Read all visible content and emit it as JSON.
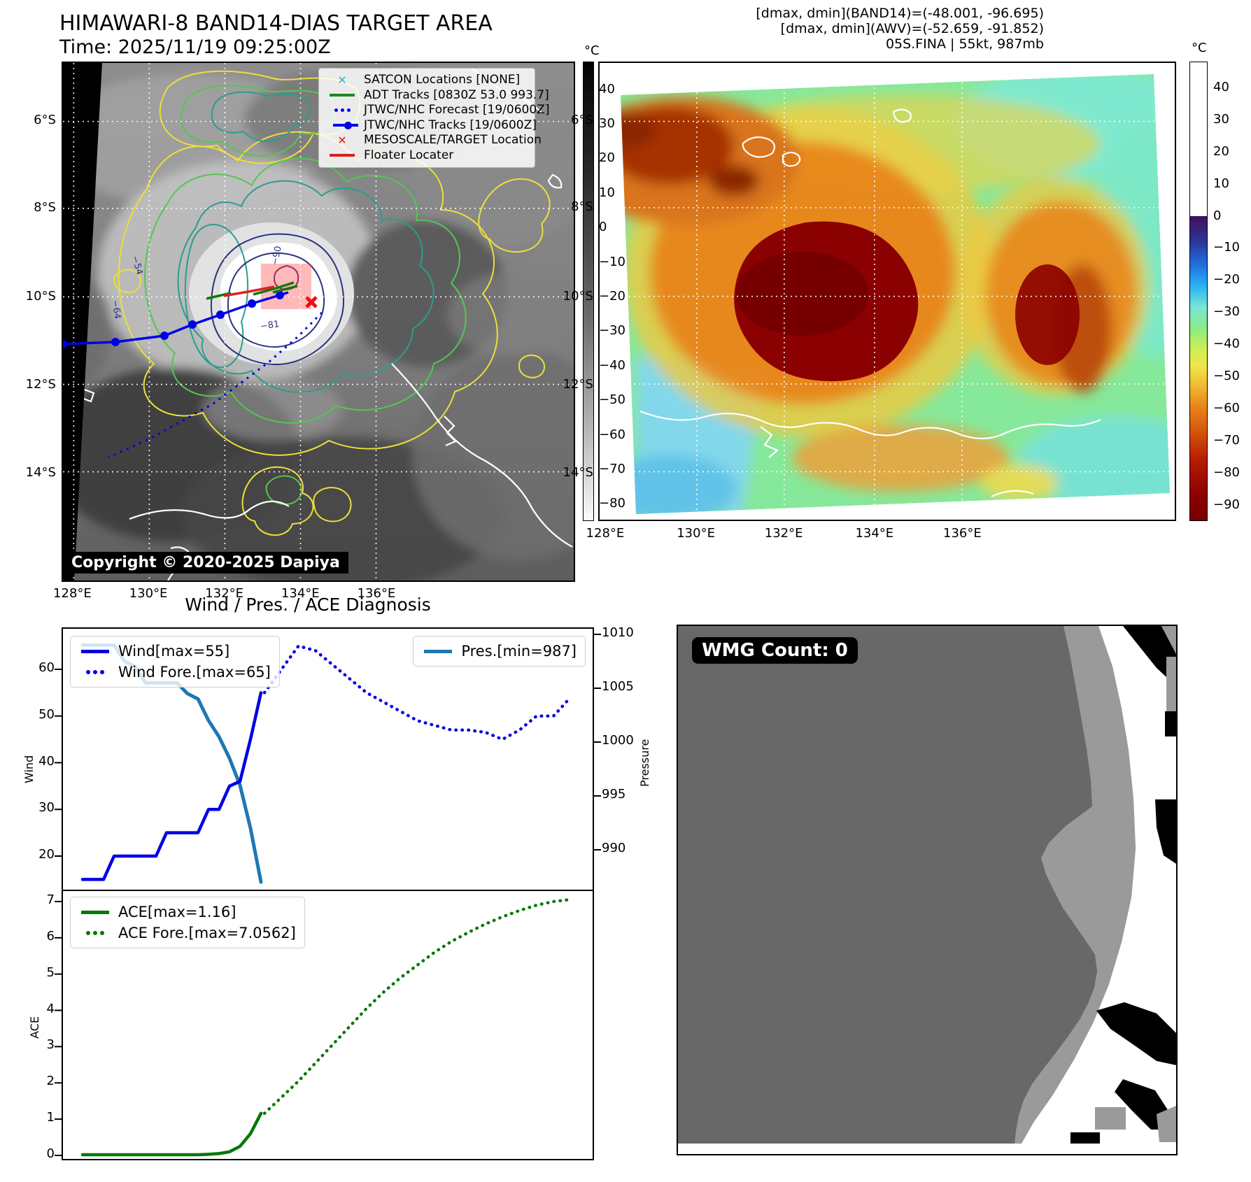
{
  "header": {
    "title": "HIMAWARI-8 BAND14-DIAS TARGET AREA",
    "time": "Time: 2025/11/19 09:25:00Z",
    "info_lines": [
      "[dmax, dmin](BAND14)=(-48.001, -96.695)",
      "[dmax, dmin](AWV)=(-52.659, -91.852)",
      "05S.FINA | 55kt, 987mb"
    ]
  },
  "left_map": {
    "x_tick_labels": [
      "128°E",
      "130°E",
      "132°E",
      "134°E",
      "136°E"
    ],
    "y_tick_labels": [
      "6°S",
      "8°S",
      "10°S",
      "12°S",
      "14°S"
    ],
    "legend": [
      {
        "label": "SATCON Locations [NONE]",
        "marker": "x",
        "color": "#1fb8c9"
      },
      {
        "label": "ADT Tracks [0830Z 53.0 993.7]",
        "marker": "line",
        "color": "#1e8a1e"
      },
      {
        "label": "JTWC/NHC Forecast [19/0600Z]",
        "marker": "dots",
        "color": "#0000e6"
      },
      {
        "label": "JTWC/NHC Tracks [19/0600Z]",
        "marker": "line-dot",
        "color": "#0000e6"
      },
      {
        "label": "MESOSCALE/TARGET Location",
        "marker": "x",
        "color": "#e81818"
      },
      {
        "label": "Floater Locater",
        "marker": "line",
        "color": "#d62020"
      }
    ],
    "contour_labels": [
      "−54",
      "−64",
      "−81",
      "−90"
    ],
    "copyright": "Copyright © 2020-2025 Dapiya",
    "colorbar": {
      "unit": "°C",
      "ticks": [
        "40",
        "30",
        "20",
        "10",
        "0",
        "−10",
        "−20",
        "−30",
        "−40",
        "−50",
        "−60",
        "−70",
        "−80"
      ]
    }
  },
  "right_map": {
    "x_tick_labels": [
      "128°E",
      "130°E",
      "132°E",
      "134°E",
      "136°E"
    ],
    "y_tick_labels": [
      "6°S",
      "8°S",
      "10°S",
      "12°S",
      "14°S"
    ],
    "colorbar": {
      "unit": "°C",
      "ticks": [
        "40",
        "30",
        "20",
        "10",
        "0",
        "−10",
        "−20",
        "−30",
        "−40",
        "−50",
        "−60",
        "−70",
        "−80",
        "−90"
      ]
    }
  },
  "diagnosis": {
    "title": "Wind / Pres. / ACE Diagnosis",
    "wind_axis_label": "Wind",
    "pressure_axis_label": "Pressure",
    "ace_axis_label": "ACE",
    "legend": {
      "wind": "Wind[max=55]",
      "wind_fore": "Wind Fore.[max=65]",
      "pres": "Pres.[min=987]",
      "ace": "ACE[max=1.16]",
      "ace_fore": "ACE Fore.[max=7.0562]"
    },
    "wind_ticks": [
      60,
      50,
      40,
      30,
      20
    ],
    "pres_ticks": [
      1010,
      1005,
      1000,
      995,
      990
    ],
    "ace_ticks": [
      7,
      6,
      5,
      4,
      3,
      2,
      1,
      0
    ]
  },
  "wmg": {
    "count_text": "WMG Count: 0"
  },
  "chart_data": [
    {
      "type": "line",
      "title": "Wind / Pres. / ACE Diagnosis (upper panel)",
      "ylabel": "Wind",
      "y2label": "Pressure",
      "ylim": [
        14,
        66
      ],
      "y2lim": [
        986.5,
        1010.5
      ],
      "grid": false,
      "legend_position": "upper-left and upper-right",
      "series": [
        {
          "name": "Wind[max=55]",
          "axis": "left",
          "style": "solid",
          "color": "#0000e6",
          "values": [
            15,
            15,
            15,
            20,
            20,
            20,
            20,
            20,
            25,
            25,
            25,
            25,
            30,
            30,
            35,
            36,
            45,
            55
          ]
        },
        {
          "name": "Wind Fore.[max=65]",
          "axis": "left",
          "style": "dotted",
          "color": "#0000e6",
          "values": [
            55,
            60,
            65,
            64,
            61,
            58,
            55,
            53,
            51,
            49,
            48,
            47,
            47,
            46.5,
            45,
            47,
            50,
            50,
            54
          ]
        },
        {
          "name": "Pres.[min=987]",
          "axis": "right",
          "style": "solid",
          "color": "#1f77b4",
          "values": [
            1009,
            1009,
            1009,
            1009,
            1007.5,
            1007,
            1005.5,
            1005.5,
            1005.5,
            1005.5,
            1004.5,
            1004,
            1002,
            1000.5,
            998.5,
            996,
            992,
            987
          ]
        }
      ]
    },
    {
      "type": "line",
      "title": "ACE (lower panel)",
      "ylabel": "ACE",
      "ylim": [
        0,
        7.3
      ],
      "grid": false,
      "legend_position": "upper-left",
      "series": [
        {
          "name": "ACE[max=1.16]",
          "style": "solid",
          "color": "#067806",
          "values": [
            0.02,
            0.02,
            0.02,
            0.02,
            0.02,
            0.02,
            0.02,
            0.02,
            0.02,
            0.02,
            0.02,
            0.02,
            0.03,
            0.05,
            0.1,
            0.25,
            0.6,
            1.16
          ]
        },
        {
          "name": "ACE Fore.[max=7.0562]",
          "style": "dotted",
          "color": "#067806",
          "values": [
            1.16,
            1.6,
            2.05,
            2.55,
            3.05,
            3.55,
            4.05,
            4.5,
            4.9,
            5.25,
            5.6,
            5.9,
            6.15,
            6.38,
            6.58,
            6.75,
            6.9,
            7.0,
            7.0562
          ]
        }
      ]
    }
  ]
}
